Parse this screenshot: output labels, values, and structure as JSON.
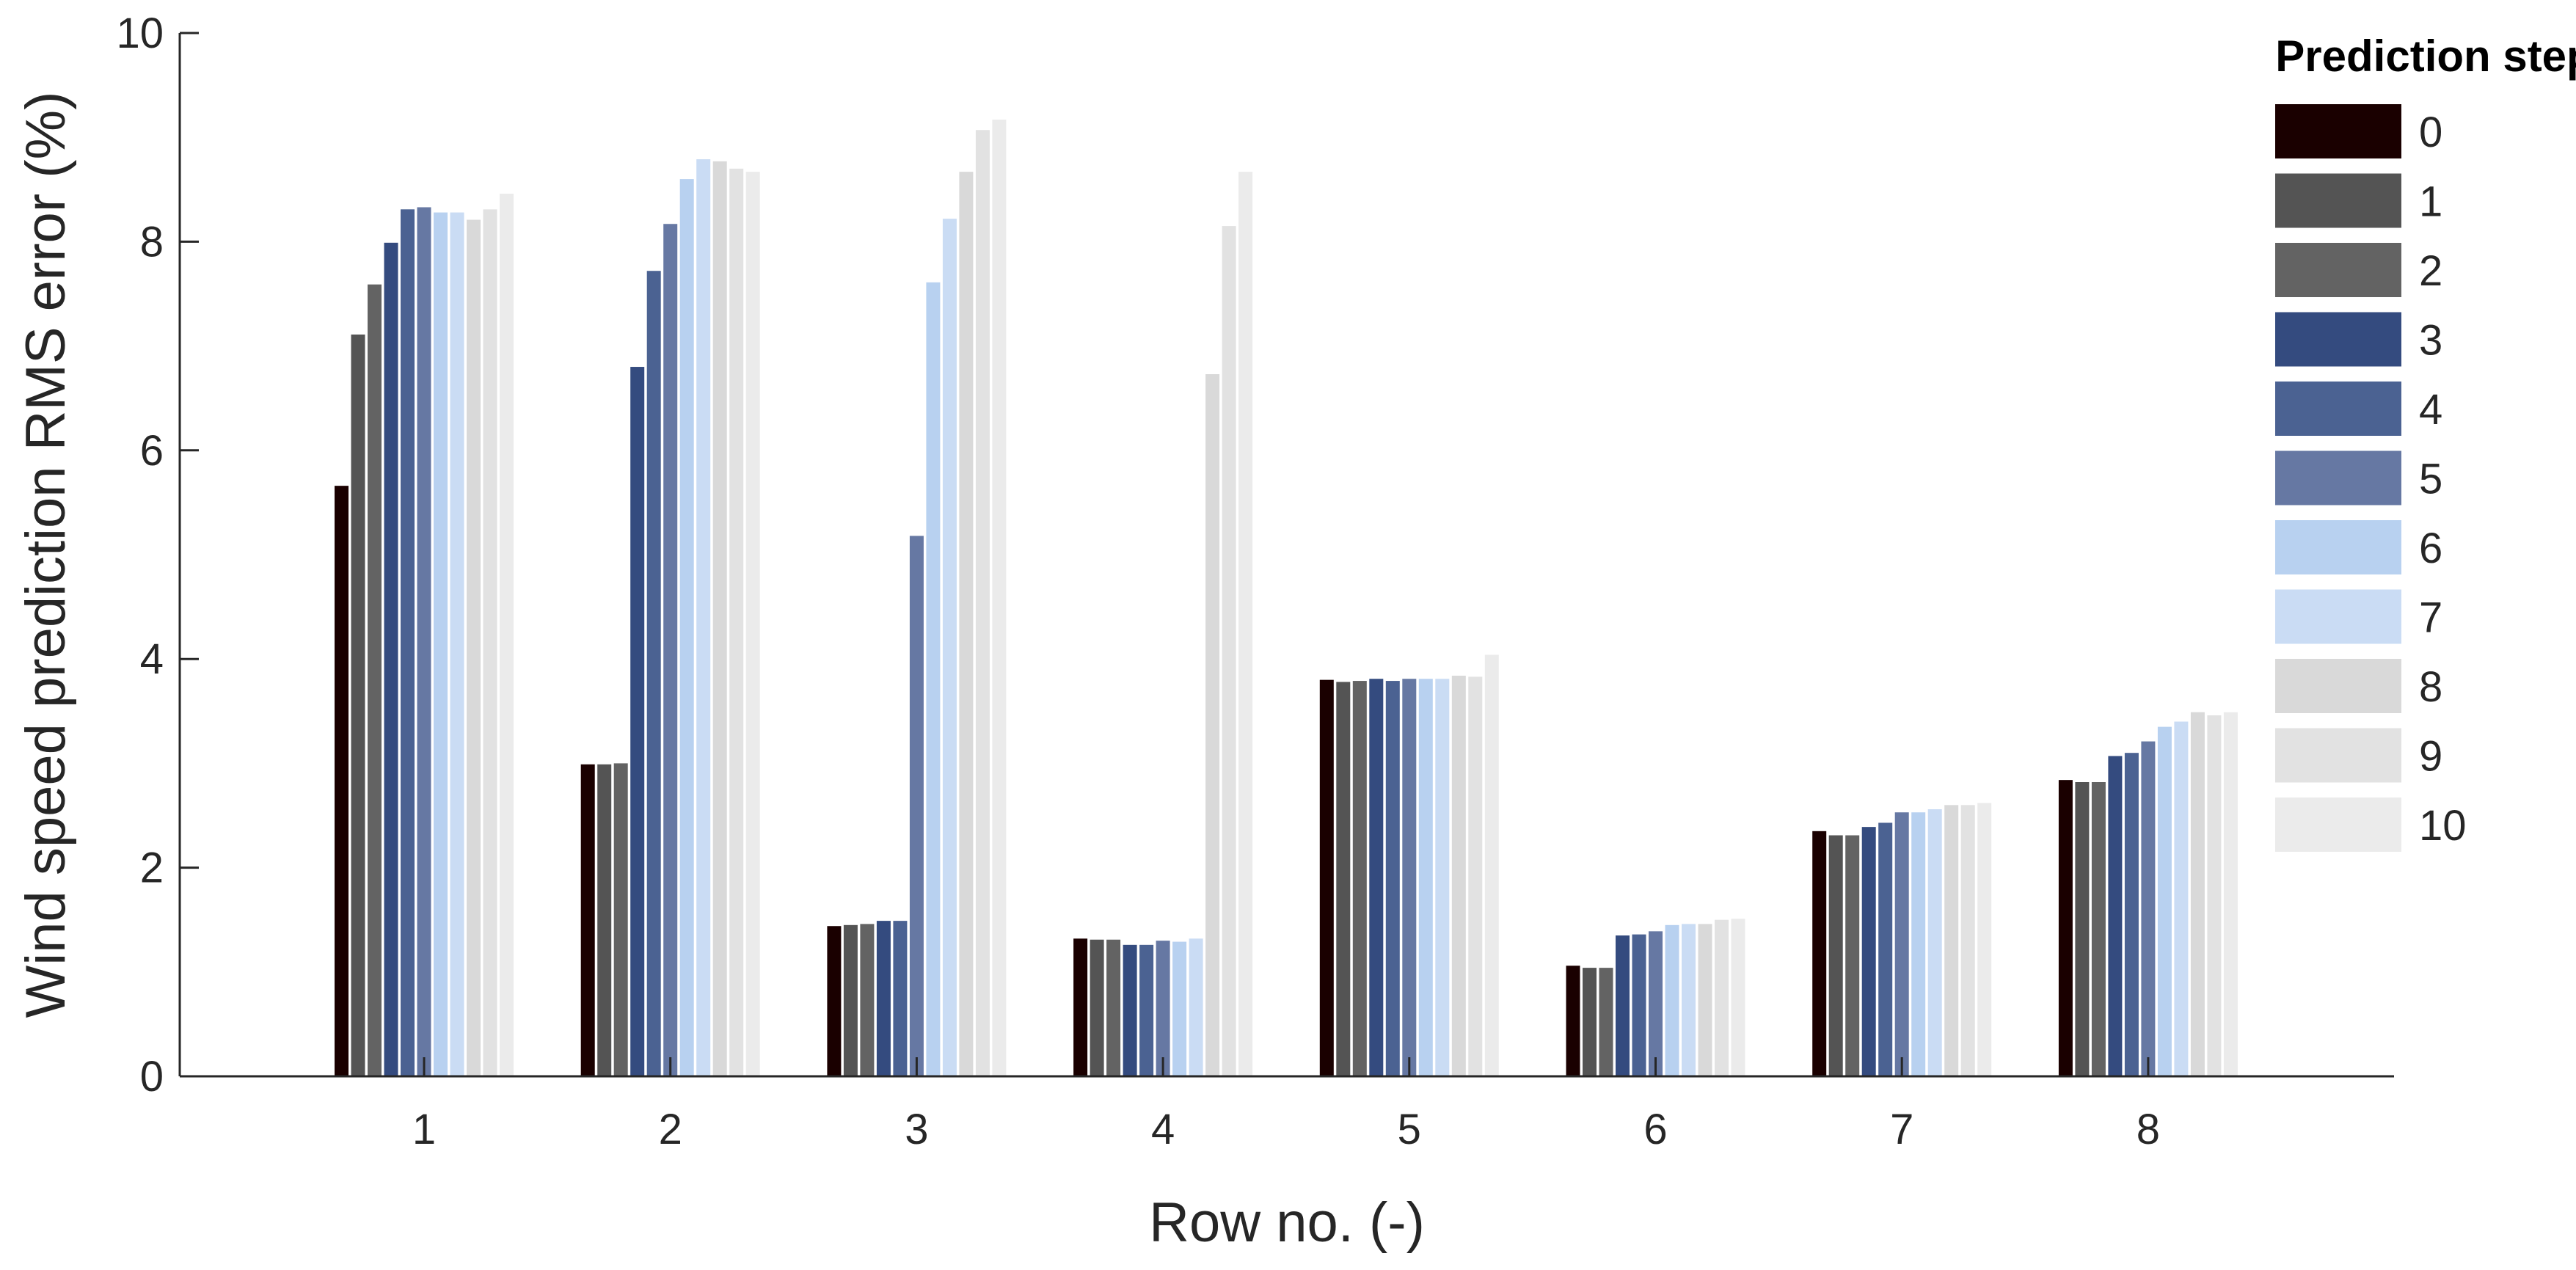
{
  "chart_data": {
    "type": "bar",
    "title": "",
    "xlabel": "Row no. (-)",
    "ylabel": "Wind speed prediction RMS error (%)",
    "ylim": [
      0,
      10
    ],
    "yticks": [
      "0",
      "2",
      "4",
      "6",
      "8",
      "10"
    ],
    "categories": [
      "1",
      "2",
      "3",
      "4",
      "5",
      "6",
      "7",
      "8"
    ],
    "legend": {
      "title": "Prediction step",
      "position": "right"
    },
    "grid": false,
    "series": [
      {
        "name": "0",
        "color": "#1a0000",
        "values": [
          5.66,
          2.99,
          1.44,
          1.32,
          3.8,
          1.06,
          2.35,
          2.84
        ]
      },
      {
        "name": "1",
        "color": "#545454",
        "values": [
          7.11,
          2.99,
          1.45,
          1.31,
          3.78,
          1.04,
          2.31,
          2.82
        ]
      },
      {
        "name": "2",
        "color": "#636363",
        "values": [
          7.59,
          3.0,
          1.46,
          1.31,
          3.79,
          1.04,
          2.31,
          2.82
        ]
      },
      {
        "name": "3",
        "color": "#344b7f",
        "values": [
          7.99,
          6.8,
          1.49,
          1.26,
          3.81,
          1.35,
          2.39,
          3.07
        ]
      },
      {
        "name": "4",
        "color": "#4b6292",
        "values": [
          8.31,
          7.72,
          1.49,
          1.26,
          3.79,
          1.36,
          2.43,
          3.1
        ]
      },
      {
        "name": "5",
        "color": "#6678a3",
        "values": [
          8.33,
          8.17,
          5.18,
          1.3,
          3.81,
          1.39,
          2.53,
          3.21
        ]
      },
      {
        "name": "6",
        "color": "#b8d1f0",
        "values": [
          8.28,
          8.6,
          7.61,
          1.29,
          3.81,
          1.45,
          2.53,
          3.35
        ]
      },
      {
        "name": "7",
        "color": "#cadcf4",
        "values": [
          8.28,
          8.79,
          8.22,
          1.32,
          3.81,
          1.46,
          2.56,
          3.4
        ]
      },
      {
        "name": "8",
        "color": "#d9d9d9",
        "values": [
          8.21,
          8.77,
          8.67,
          6.73,
          3.84,
          1.46,
          2.6,
          3.49
        ]
      },
      {
        "name": "9",
        "color": "#e2e2e2",
        "values": [
          8.31,
          8.7,
          9.07,
          8.15,
          3.83,
          1.5,
          2.6,
          3.46
        ]
      },
      {
        "name": "10",
        "color": "#ebebeb",
        "values": [
          8.46,
          8.67,
          9.17,
          8.67,
          4.04,
          1.51,
          2.62,
          3.49
        ]
      }
    ]
  }
}
